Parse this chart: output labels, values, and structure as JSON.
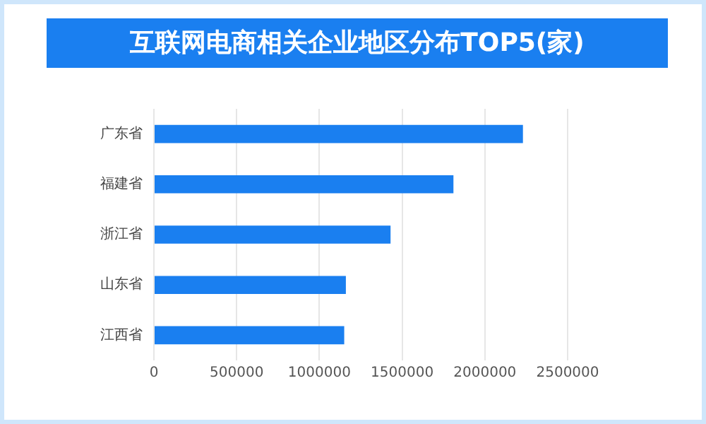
{
  "chart_data": {
    "type": "bar",
    "orientation": "horizontal",
    "title": "互联网电商相关企业地区分布TOP5(家)",
    "categories": [
      "广东省",
      "福建省",
      "浙江省",
      "山东省",
      "江西省"
    ],
    "values": [
      2230000,
      1810000,
      1430000,
      1160000,
      1150000
    ],
    "color": "#1a7ff0",
    "xlim": [
      0,
      2500000
    ],
    "xticks": [
      0,
      500000,
      1000000,
      1500000,
      2000000,
      2500000
    ],
    "grid": "x",
    "legend": false
  }
}
